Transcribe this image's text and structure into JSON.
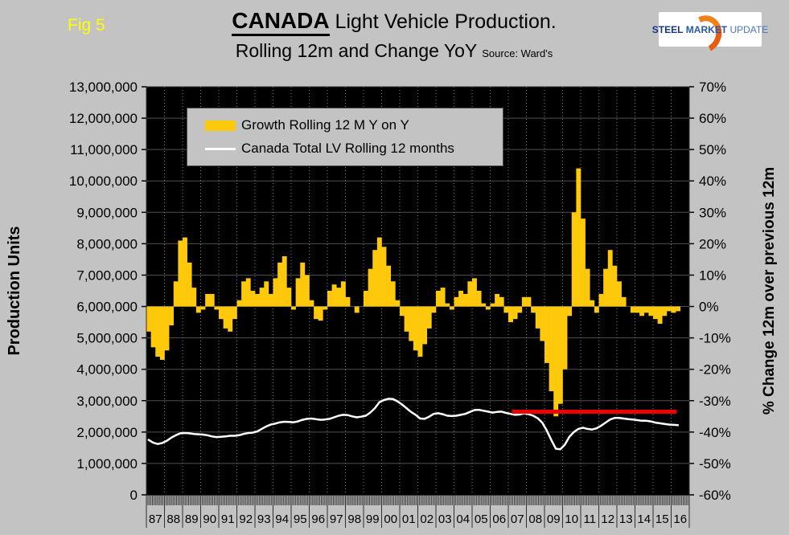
{
  "header": {
    "fig_label": "Fig 5",
    "title_brand": "CANADA",
    "title_rest": " Light Vehicle Production.",
    "subtitle": "Rolling 12m and Change YoY",
    "source_note": "Source: Ward's",
    "logo_words": {
      "steel": "STEEL",
      "market": "MARKET",
      "update": "UPDATE"
    }
  },
  "chart_data": {
    "type": "bar+line",
    "title": "CANADA Light Vehicle Production. Rolling 12m and Change YoY",
    "source": "Ward's",
    "x_domain": [
      1987,
      2017
    ],
    "x_tick_labels": [
      "87",
      "88",
      "89",
      "90",
      "91",
      "92",
      "93",
      "94",
      "95",
      "96",
      "97",
      "98",
      "99",
      "00",
      "01",
      "02",
      "03",
      "04",
      "05",
      "06",
      "07",
      "08",
      "09",
      "10",
      "11",
      "12",
      "13",
      "14",
      "15",
      "16"
    ],
    "left_axis": {
      "title": "Production Units",
      "unit": "million units",
      "min": 0,
      "max": 13,
      "tick_step": 1,
      "tick_labels": [
        "13,000,000",
        "12,000,000",
        "11,000,000",
        "10,000,000",
        "9,000,000",
        "8,000,000",
        "7,000,000",
        "6,000,000",
        "5,000,000",
        "4,000,000",
        "3,000,000",
        "2,000,000",
        "1,000,000",
        "0"
      ]
    },
    "right_axis": {
      "title": "% Change 12m over previous 12m",
      "unit": "%",
      "min": -60,
      "max": 70,
      "tick_step": 10,
      "tick_labels": [
        "70%",
        "60%",
        "50%",
        "40%",
        "30%",
        "20%",
        "10%",
        "0%",
        "-10%",
        "-20%",
        "-30%",
        "-40%",
        "-50%",
        "-60%"
      ]
    },
    "grid": {
      "background": "#000000",
      "h_line_color": "#4f4f4f",
      "v_line_color": "#7d7d7d",
      "v_style": "dotted"
    },
    "legend_position": "top-left-inside",
    "series": [
      {
        "name": "Growth Rolling 12 M Y on Y",
        "type": "bar",
        "axis": "right",
        "unit": "%",
        "color": "#fec90a",
        "x_start": 1987,
        "x_step": 0.25,
        "values": [
          -8,
          -13,
          -16,
          -17,
          -14,
          -6,
          8,
          21,
          22,
          14,
          6,
          -2,
          -1,
          4,
          4,
          -1,
          -4,
          -7,
          -8,
          -4,
          2,
          8,
          9,
          5,
          4,
          6,
          8,
          4,
          9,
          14,
          16,
          6,
          -1,
          9,
          14,
          10,
          2,
          -4,
          -4.5,
          -1,
          5,
          7,
          6,
          8,
          3,
          0,
          -2,
          0,
          5,
          12,
          18,
          22,
          19,
          13,
          8,
          2,
          -3,
          -8,
          -11,
          -14,
          -16,
          -12,
          -7,
          -2,
          5,
          6,
          1,
          -1,
          3,
          5,
          4,
          8,
          9,
          5,
          1,
          -1,
          1,
          4,
          3,
          -2,
          -5,
          -4,
          -2,
          3,
          3,
          -2,
          -7,
          -11,
          -18,
          -27,
          -35,
          -31,
          -20,
          -3,
          30,
          44,
          28,
          12,
          2,
          -2,
          4,
          12,
          18,
          13,
          8,
          3,
          0,
          -2,
          -2,
          -3,
          -2,
          -3,
          -4,
          -5.5,
          -3,
          -1.5,
          -2,
          -1.5
        ]
      },
      {
        "name": "Canada Total LV Rolling 12 months",
        "type": "line",
        "axis": "left",
        "unit": "million units",
        "color": "#ffffff",
        "x_start": 1987,
        "x_step": 0.25,
        "values": [
          1.75,
          1.66,
          1.62,
          1.65,
          1.72,
          1.82,
          1.9,
          1.96,
          1.97,
          1.96,
          1.94,
          1.93,
          1.92,
          1.9,
          1.86,
          1.84,
          1.85,
          1.86,
          1.88,
          1.88,
          1.9,
          1.94,
          1.97,
          1.98,
          2.02,
          2.1,
          2.18,
          2.24,
          2.27,
          2.31,
          2.33,
          2.32,
          2.31,
          2.34,
          2.39,
          2.42,
          2.43,
          2.41,
          2.39,
          2.4,
          2.42,
          2.47,
          2.52,
          2.55,
          2.54,
          2.5,
          2.47,
          2.49,
          2.52,
          2.62,
          2.76,
          2.95,
          3.02,
          3.06,
          3.05,
          2.98,
          2.88,
          2.76,
          2.64,
          2.55,
          2.43,
          2.42,
          2.49,
          2.58,
          2.6,
          2.57,
          2.52,
          2.51,
          2.52,
          2.55,
          2.58,
          2.64,
          2.7,
          2.71,
          2.68,
          2.65,
          2.62,
          2.64,
          2.65,
          2.61,
          2.58,
          2.55,
          2.56,
          2.6,
          2.57,
          2.52,
          2.44,
          2.3,
          2.05,
          1.75,
          1.47,
          1.45,
          1.6,
          1.85,
          2.0,
          2.1,
          2.14,
          2.1,
          2.08,
          2.12,
          2.2,
          2.3,
          2.4,
          2.45,
          2.45,
          2.43,
          2.41,
          2.4,
          2.38,
          2.36,
          2.36,
          2.34,
          2.3,
          2.28,
          2.26,
          2.24,
          2.23,
          2.22
        ]
      },
      {
        "name": "2009 trough reference line",
        "type": "hline",
        "axis": "right",
        "color": "#ee0000",
        "value": -33.5,
        "x_start": 2007.2,
        "x_end": 2016.3
      }
    ]
  }
}
